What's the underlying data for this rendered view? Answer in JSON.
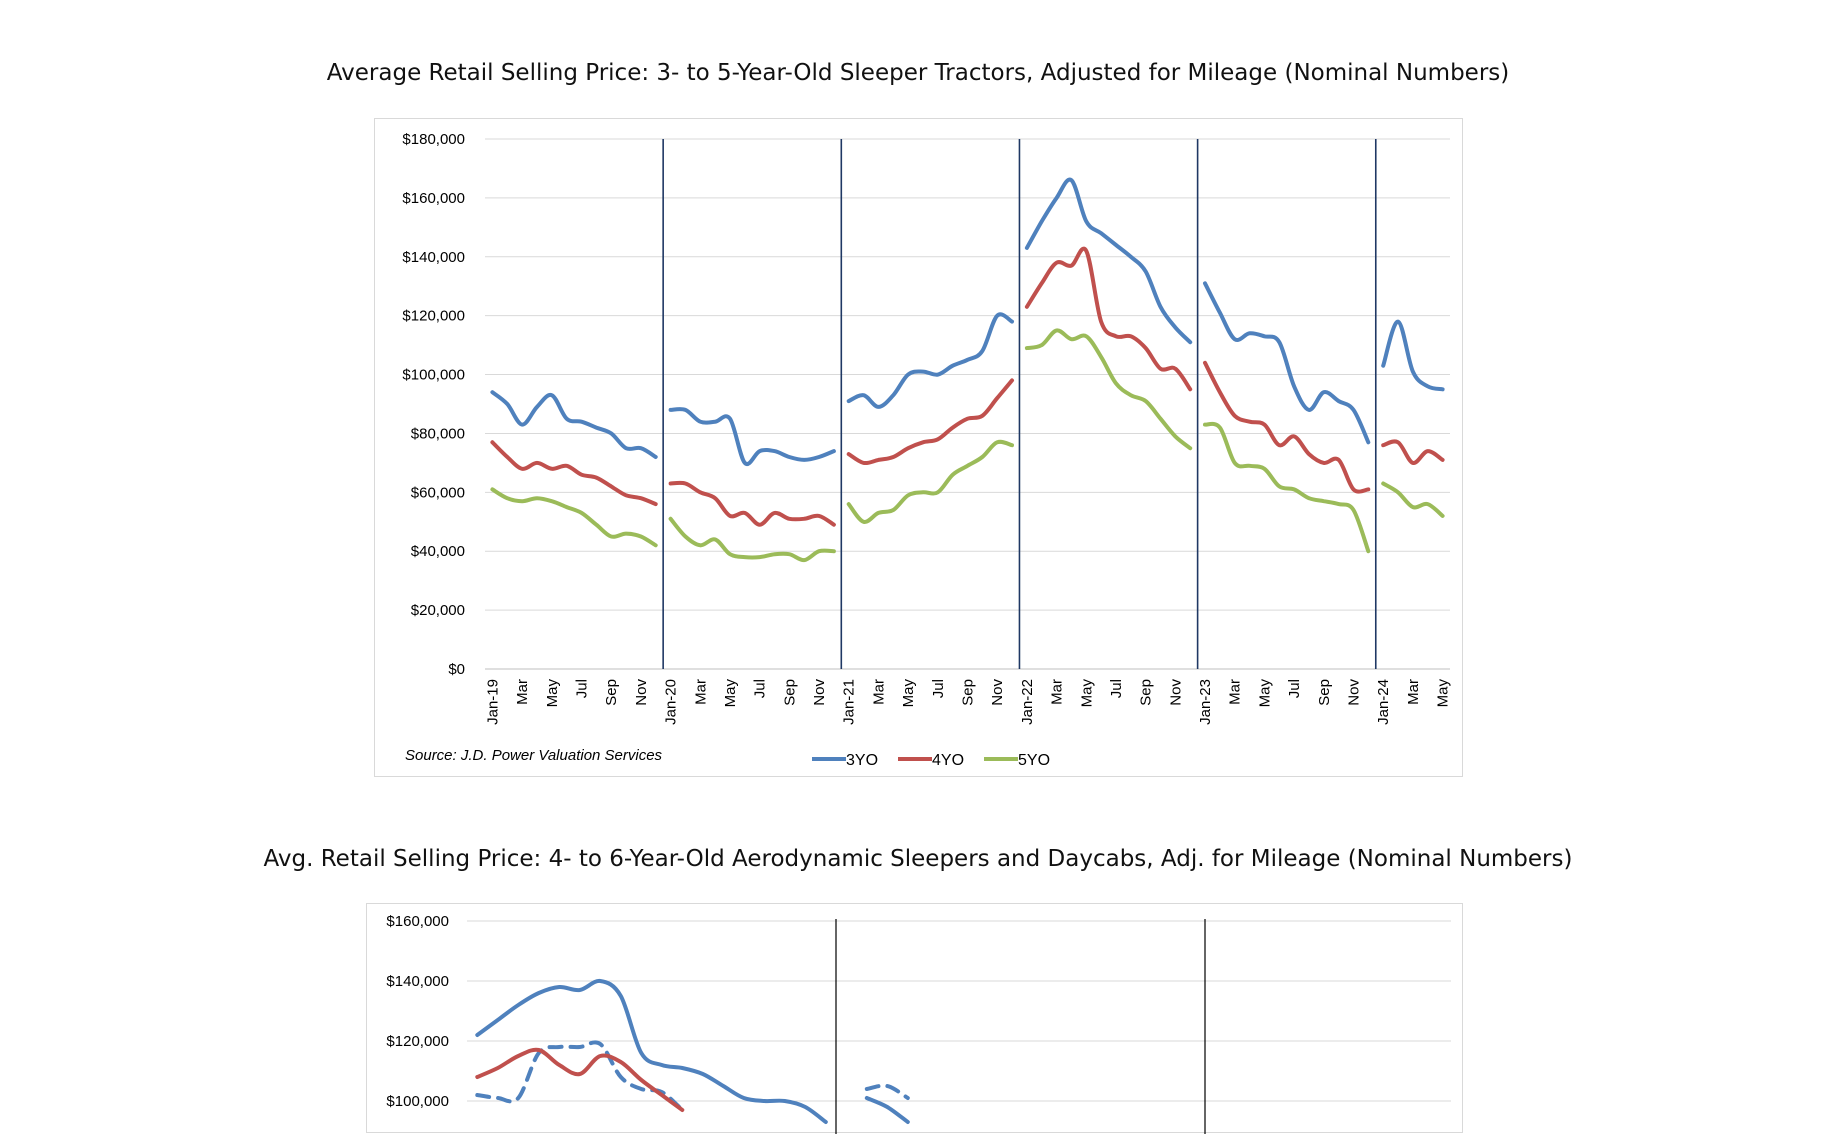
{
  "charts_titles": {
    "chart1": "Average Retail Selling Price: 3- to 5-Year-Old Sleeper Tractors, Adjusted for Mileage (Nominal Numbers)",
    "chart2": "Avg. Retail Selling Price: 4- to 6-Year-Old Aerodynamic Sleepers and Daycabs, Adj. for Mileage (Nominal Numbers)"
  },
  "chart_data": [
    {
      "type": "line",
      "title": "Average Retail Selling Price: 3- to 5-Year-Old Sleeper Tractors, Adjusted for Mileage (Nominal Numbers)",
      "source": "Source: J.D. Power Valuation Services",
      "ylim": [
        0,
        180000
      ],
      "yticks": [
        "$0",
        "$20,000",
        "$40,000",
        "$60,000",
        "$80,000",
        "$100,000",
        "$120,000",
        "$140,000",
        "$160,000",
        "$180,000"
      ],
      "ytick_values": [
        0,
        20000,
        40000,
        60000,
        80000,
        100000,
        120000,
        140000,
        160000,
        180000
      ],
      "x_tick_labels": [
        "Jan-19",
        "Mar",
        "May",
        "Jul",
        "Sep",
        "Nov",
        "Jan-20",
        "Mar",
        "May",
        "Jul",
        "Sep",
        "Nov",
        "Jan-21",
        "Mar",
        "May",
        "Jul",
        "Sep",
        "Nov",
        "Jan-22",
        "Mar",
        "May",
        "Jul",
        "Sep",
        "Nov",
        "Jan-23",
        "Mar",
        "May",
        "Jul",
        "Sep",
        "Nov",
        "Jan-24",
        "Mar",
        "May"
      ],
      "segments_by_year": [
        "2019",
        "2020",
        "2021",
        "2022",
        "2023",
        "2024"
      ],
      "grid": true,
      "legend_position": "bottom",
      "series": [
        {
          "name": "3YO",
          "color": "#4f81bd",
          "values": [
            [
              94000,
              90000,
              83000,
              89000,
              93000,
              85000,
              84000,
              82000,
              80000,
              75000,
              75000,
              72000
            ],
            [
              88000,
              88000,
              84000,
              84000,
              85000,
              70000,
              74000,
              74000,
              72000,
              71000,
              72000,
              74000
            ],
            [
              91000,
              93000,
              89000,
              93000,
              100000,
              101000,
              100000,
              103000,
              105000,
              108000,
              120000,
              118000
            ],
            [
              143000,
              152000,
              160000,
              166000,
              152000,
              148000,
              144000,
              140000,
              135000,
              123000,
              116000,
              111000
            ],
            [
              131000,
              121000,
              112000,
              114000,
              113000,
              111000,
              96000,
              88000,
              94000,
              91000,
              88000,
              77000
            ],
            [
              103000,
              118000,
              101000,
              96000,
              95000
            ]
          ]
        },
        {
          "name": "4YO",
          "color": "#c0504d",
          "values": [
            [
              77000,
              72000,
              68000,
              70000,
              68000,
              69000,
              66000,
              65000,
              62000,
              59000,
              58000,
              56000
            ],
            [
              63000,
              63000,
              60000,
              58000,
              52000,
              53000,
              49000,
              53000,
              51000,
              51000,
              52000,
              49000
            ],
            [
              73000,
              70000,
              71000,
              72000,
              75000,
              77000,
              78000,
              82000,
              85000,
              86000,
              92000,
              98000
            ],
            [
              123000,
              131000,
              138000,
              137000,
              142000,
              118000,
              113000,
              113000,
              109000,
              102000,
              102000,
              95000
            ],
            [
              104000,
              94000,
              86000,
              84000,
              83000,
              76000,
              79000,
              73000,
              70000,
              71000,
              61000,
              61000
            ],
            [
              76000,
              77000,
              70000,
              74000,
              71000
            ]
          ]
        },
        {
          "name": "5YO",
          "color": "#9bbb59",
          "values": [
            [
              61000,
              58000,
              57000,
              58000,
              57000,
              55000,
              53000,
              49000,
              45000,
              46000,
              45000,
              42000
            ],
            [
              51000,
              45000,
              42000,
              44000,
              39000,
              38000,
              38000,
              39000,
              39000,
              37000,
              40000,
              40000
            ],
            [
              56000,
              50000,
              53000,
              54000,
              59000,
              60000,
              60000,
              66000,
              69000,
              72000,
              77000,
              76000
            ],
            [
              109000,
              110000,
              115000,
              112000,
              113000,
              106000,
              97000,
              93000,
              91000,
              85000,
              79000,
              75000
            ],
            [
              83000,
              82000,
              70000,
              69000,
              68000,
              62000,
              61000,
              58000,
              57000,
              56000,
              54000,
              40000
            ],
            [
              63000,
              60000,
              55000,
              56000,
              52000
            ]
          ]
        }
      ]
    },
    {
      "type": "line",
      "title": "Avg. Retail Selling Price: 4- to 6-Year-Old Aerodynamic Sleepers and Daycabs, Adj. for Mileage (Nominal Numbers)",
      "ylim_visible": [
        100000,
        160000
      ],
      "yticks": [
        "$100,000",
        "$120,000",
        "$140,000",
        "$160,000"
      ],
      "ytick_values": [
        100000,
        120000,
        140000,
        160000
      ],
      "grid": true,
      "series": [
        {
          "color": "#4f81bd",
          "style": "solid",
          "values": [
            122000,
            127000,
            132000,
            136000,
            138000,
            137000,
            140000,
            135000,
            116000,
            112000,
            111000,
            109000,
            105000,
            101000,
            100000,
            100000,
            98000,
            93000,
            null,
            101000,
            98000,
            93000
          ]
        },
        {
          "color": "#4f81bd",
          "style": "dashed",
          "values": [
            102000,
            101000,
            101000,
            116000,
            118000,
            118000,
            119000,
            108000,
            104000,
            103000,
            97000,
            null,
            null,
            null,
            null,
            null,
            null,
            null,
            null,
            104000,
            105000,
            101000
          ]
        },
        {
          "color": "#c0504d",
          "style": "solid",
          "values": [
            108000,
            111000,
            115000,
            117000,
            112000,
            109000,
            115000,
            113000,
            107000,
            102000,
            97000
          ]
        }
      ]
    }
  ],
  "legend": [
    {
      "label": "3YO",
      "color": "#4f81bd"
    },
    {
      "label": "4YO",
      "color": "#c0504d"
    },
    {
      "label": "5YO",
      "color": "#9bbb59"
    }
  ]
}
